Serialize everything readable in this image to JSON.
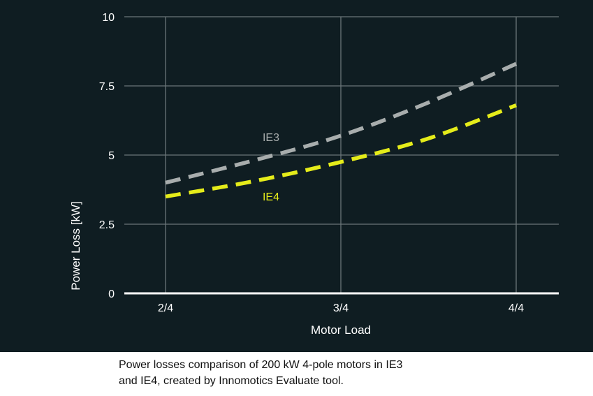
{
  "chart_data": {
    "type": "line",
    "xlabel": "Motor Load",
    "ylabel": "Power Loss [kW]",
    "x_categories": [
      "2/4",
      "3/4",
      "4/4"
    ],
    "y_ticks": [
      "0",
      "2.5",
      "5",
      "7.5",
      "10"
    ],
    "ylim": [
      0,
      10
    ],
    "grid": true,
    "series": [
      {
        "name": "IE3",
        "color": "#a8adad",
        "x": [
          0.5,
          0.625,
          0.75,
          0.875,
          1.0
        ],
        "y": [
          4.0,
          4.8,
          5.7,
          6.9,
          8.3
        ]
      },
      {
        "name": "IE4",
        "color": "#e5ec1a",
        "x": [
          0.5,
          0.625,
          0.75,
          0.875,
          1.0
        ],
        "y": [
          3.5,
          4.05,
          4.75,
          5.6,
          6.8
        ]
      }
    ]
  },
  "caption": {
    "line1": "Power losses comparison of 200 kW 4-pole motors  in IE3",
    "line2": "and IE4, created by Innomotics Evaluate tool."
  }
}
